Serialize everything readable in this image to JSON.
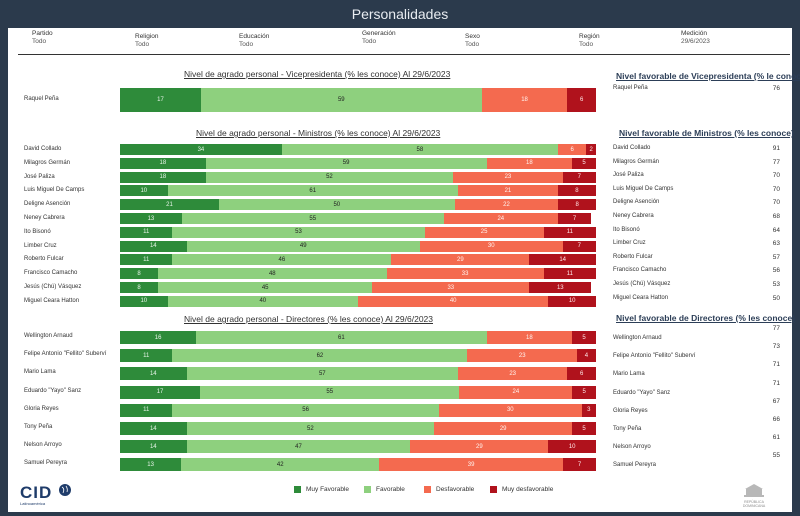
{
  "title": "Personalidades",
  "filters": [
    {
      "label": "Partido",
      "value": "Todo"
    },
    {
      "label": "Religion",
      "value": "Todo"
    },
    {
      "label": "Educación",
      "value": "Todo"
    },
    {
      "label": "Generación",
      "value": "Todo"
    },
    {
      "label": "Sexo",
      "value": "Todo"
    },
    {
      "label": "Región",
      "value": "Todo"
    },
    {
      "label": "Medición",
      "value": "29/6/2023"
    }
  ],
  "colors": {
    "muy_favorable": "#2e8b3a",
    "favorable": "#8ed07e",
    "desfavorable": "#f46a4f",
    "muy_desfavorable": "#b0121c"
  },
  "legend": [
    "Muy Favorable",
    "Favorable",
    "Desfavorable",
    "Muy desfavorable"
  ],
  "logo": {
    "name": "CID",
    "sub": "Latinoamérica"
  },
  "seal_text": "REPÚBLICA DOMINICANA",
  "chart_data": [
    {
      "type": "bar",
      "stacked": true,
      "orientation": "horizontal",
      "title": "Nivel de agrado personal - Vicepresidenta (% les conoce) Al 29/6/2023",
      "categories": [
        "Raquel Peña"
      ],
      "series": [
        {
          "name": "Muy Favorable",
          "values": [
            17
          ]
        },
        {
          "name": "Favorable",
          "values": [
            59
          ]
        },
        {
          "name": "Desfavorable",
          "values": [
            18
          ]
        },
        {
          "name": "Muy desfavorable",
          "values": [
            6
          ]
        }
      ]
    },
    {
      "type": "bar",
      "stacked": true,
      "orientation": "horizontal",
      "title": "Nivel de agrado personal - Ministros (% les conoce) Al 29/6/2023",
      "categories": [
        "David Collado",
        "Milagros Germán",
        "José Paliza",
        "Luis Miguel De Camps",
        "Deligne Asención",
        "Neney Cabrera",
        "Ito Bisonó",
        "Limber Cruz",
        "Roberto Fulcar",
        "Francisco Camacho",
        "Jesús (Chú) Vásquez",
        "Miguel Ceara Hatton"
      ],
      "series": [
        {
          "name": "Muy Favorable",
          "values": [
            34,
            18,
            18,
            10,
            21,
            13,
            11,
            14,
            11,
            8,
            8,
            10
          ]
        },
        {
          "name": "Favorable",
          "values": [
            58,
            59,
            52,
            61,
            50,
            55,
            53,
            49,
            46,
            48,
            45,
            40
          ]
        },
        {
          "name": "Desfavorable",
          "values": [
            6,
            18,
            23,
            21,
            22,
            24,
            25,
            30,
            29,
            33,
            33,
            40
          ]
        },
        {
          "name": "Muy desfavorable",
          "values": [
            2,
            5,
            7,
            8,
            8,
            7,
            11,
            7,
            14,
            11,
            13,
            10
          ]
        }
      ]
    },
    {
      "type": "bar",
      "stacked": true,
      "orientation": "horizontal",
      "title": "Nivel de agrado personal - Directores (% les conoce) Al 29/6/2023",
      "categories": [
        "Wellington Arnaud",
        "Felipe Antonio \"Fellito\" Suberví",
        "Mario Lama",
        "Eduardo \"Yayo\" Sanz",
        "Gloria Reyes",
        "Tony Peña",
        "Nelson Arroyo",
        "Samuel Pereyra"
      ],
      "series": [
        {
          "name": "Muy Favorable",
          "values": [
            16,
            11,
            14,
            17,
            11,
            14,
            14,
            13
          ]
        },
        {
          "name": "Favorable",
          "values": [
            61,
            62,
            57,
            55,
            56,
            52,
            47,
            42
          ]
        },
        {
          "name": "Desfavorable",
          "values": [
            18,
            23,
            23,
            24,
            30,
            29,
            29,
            39
          ]
        },
        {
          "name": "Muy desfavorable",
          "values": [
            5,
            4,
            6,
            5,
            3,
            5,
            10,
            7
          ]
        }
      ]
    },
    {
      "type": "table",
      "title": "Nivel favorable de Vicepresidenta (% le conoce)",
      "categories": [
        "Raquel Peña"
      ],
      "values": [
        76
      ]
    },
    {
      "type": "table",
      "title": "Nivel favorable de Ministros (% les conoce)",
      "categories": [
        "David Collado",
        "Milagros Germán",
        "José Paliza",
        "Luis Miguel De Camps",
        "Deligne Asención",
        "Neney Cabrera",
        "Ito Bisonó",
        "Limber Cruz",
        "Roberto Fulcar",
        "Francisco Camacho",
        "Jesús (Chú) Vásquez",
        "Miguel Ceara Hatton"
      ],
      "values": [
        91,
        77,
        70,
        70,
        70,
        68,
        64,
        63,
        57,
        56,
        53,
        50
      ]
    },
    {
      "type": "table",
      "title": "Nivel favorable de Directores (% les conoce)",
      "categories": [
        "Wellington Arnaud",
        "Felipe Antonio \"Fellito\" Suberví",
        "Mario Lama",
        "Eduardo \"Yayo\" Sanz",
        "Gloria Reyes",
        "Tony Peña",
        "Nelson Arroyo",
        "Samuel Pereyra"
      ],
      "values": [
        77,
        73,
        71,
        71,
        67,
        66,
        61,
        55
      ]
    }
  ]
}
